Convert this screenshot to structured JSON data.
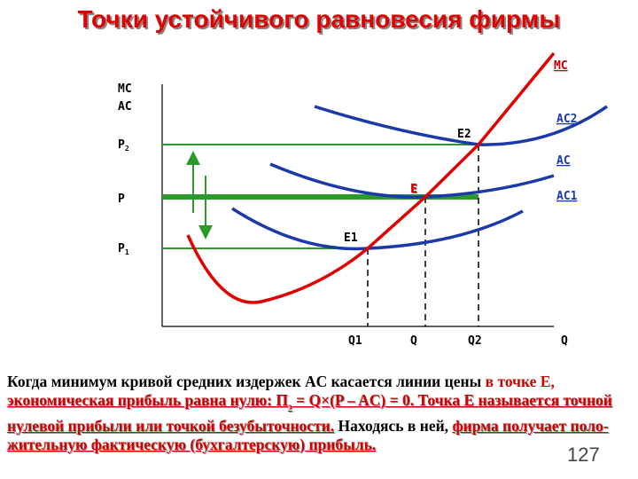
{
  "header": {
    "title": "Точки устойчивого равновесия фирмы"
  },
  "diagram": {
    "y_axis_label": [
      "MC",
      "AC"
    ],
    "x_axis_label": "Q",
    "price_labels": [
      {
        "label": "P",
        "sub": "2"
      },
      {
        "label": "P"
      },
      {
        "label": "P",
        "sub": "1"
      }
    ],
    "quantity_labels": [
      "Q1",
      "Q",
      "Q2"
    ],
    "curve_labels": [
      "MC",
      "AC2",
      "AC",
      "AC1"
    ],
    "points": [
      "E2",
      "E",
      "E1"
    ]
  },
  "paragraph": [
    {
      "text": "Когда минимум кривой средних издержек AC касается линии цены "
    },
    {
      "text": "в точке Е, "
    },
    {
      "text": "экономическая прибыль равна нулю: П"
    },
    {
      "text": "э"
    },
    {
      "text": " = Q×(P – AC) = 0. Точка Е называется точной нулевой прибыли или точкой безубыточности."
    },
    {
      "text": " Находясь в ней, "
    },
    {
      "text": "фирма получает поло-жительную фактическую (бухгалтерскую) прибыль."
    }
  ],
  "page_number": "127"
}
